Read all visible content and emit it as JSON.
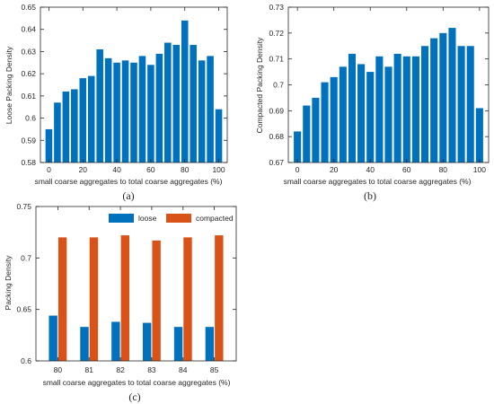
{
  "chart_data": [
    {
      "id": "a",
      "type": "bar",
      "panel_label": "(a)",
      "xlabel": "small coarse aggregates to total coarse aggregates (%)",
      "ylabel": "Loose Packing Density",
      "x": [
        0,
        5,
        10,
        15,
        20,
        25,
        30,
        35,
        40,
        45,
        50,
        55,
        60,
        65,
        70,
        75,
        80,
        85,
        90,
        95,
        100
      ],
      "values": [
        0.595,
        0.607,
        0.612,
        0.613,
        0.618,
        0.619,
        0.631,
        0.627,
        0.625,
        0.626,
        0.625,
        0.628,
        0.624,
        0.629,
        0.634,
        0.633,
        0.644,
        0.633,
        0.626,
        0.628,
        0.604
      ],
      "xlim": [
        -5,
        105
      ],
      "ylim": [
        0.58,
        0.65
      ],
      "xticks": [
        0,
        20,
        40,
        60,
        80,
        100
      ],
      "xtick_labels": [
        "0",
        "20",
        "40",
        "60",
        "80",
        "100"
      ],
      "yticks": [
        0.58,
        0.59,
        0.6,
        0.61,
        0.62,
        0.63,
        0.64,
        0.65
      ],
      "ytick_labels": [
        "0.58",
        "0.59",
        "0.6",
        "0.61",
        "0.62",
        "0.63",
        "0.64",
        "0.65"
      ],
      "color": "#0072BD",
      "grid": false
    },
    {
      "id": "b",
      "type": "bar",
      "panel_label": "(b)",
      "xlabel": "small coarse aggregates to total coarse aggregates (%)",
      "ylabel": "Compacted Packing Density",
      "x": [
        0,
        5,
        10,
        15,
        20,
        25,
        30,
        35,
        40,
        45,
        50,
        55,
        60,
        65,
        70,
        75,
        80,
        85,
        90,
        95,
        100
      ],
      "values": [
        0.682,
        0.692,
        0.695,
        0.701,
        0.703,
        0.707,
        0.712,
        0.708,
        0.705,
        0.711,
        0.707,
        0.712,
        0.711,
        0.711,
        0.715,
        0.718,
        0.72,
        0.722,
        0.715,
        0.715,
        0.691
      ],
      "xlim": [
        -5,
        105
      ],
      "ylim": [
        0.67,
        0.73
      ],
      "xticks": [
        0,
        20,
        40,
        60,
        80,
        100
      ],
      "xtick_labels": [
        "0",
        "20",
        "40",
        "60",
        "80",
        "100"
      ],
      "yticks": [
        0.67,
        0.68,
        0.69,
        0.7,
        0.71,
        0.72,
        0.73
      ],
      "ytick_labels": [
        "0.67",
        "0.68",
        "0.69",
        "0.7",
        "0.71",
        "0.72",
        "0.73"
      ],
      "color": "#0072BD",
      "grid": false
    },
    {
      "id": "c",
      "type": "bar",
      "panel_label": "(c)",
      "xlabel": "small coarse aggregates to total coarse aggregates (%)",
      "ylabel": "Packing Density",
      "categories": [
        "80",
        "81",
        "82",
        "83",
        "84",
        "85"
      ],
      "series": [
        {
          "name": "loose",
          "color": "#0072BD",
          "values": [
            0.644,
            0.633,
            0.638,
            0.637,
            0.633,
            0.633
          ]
        },
        {
          "name": "compacted",
          "color": "#D95319",
          "values": [
            0.72,
            0.72,
            0.722,
            0.717,
            0.72,
            0.722
          ]
        }
      ],
      "ylim": [
        0.6,
        0.75
      ],
      "yticks": [
        0.6,
        0.65,
        0.7,
        0.75
      ],
      "ytick_labels": [
        "0.6",
        "0.65",
        "0.7",
        "0.75"
      ],
      "legend": "top-center",
      "grid": false
    }
  ]
}
